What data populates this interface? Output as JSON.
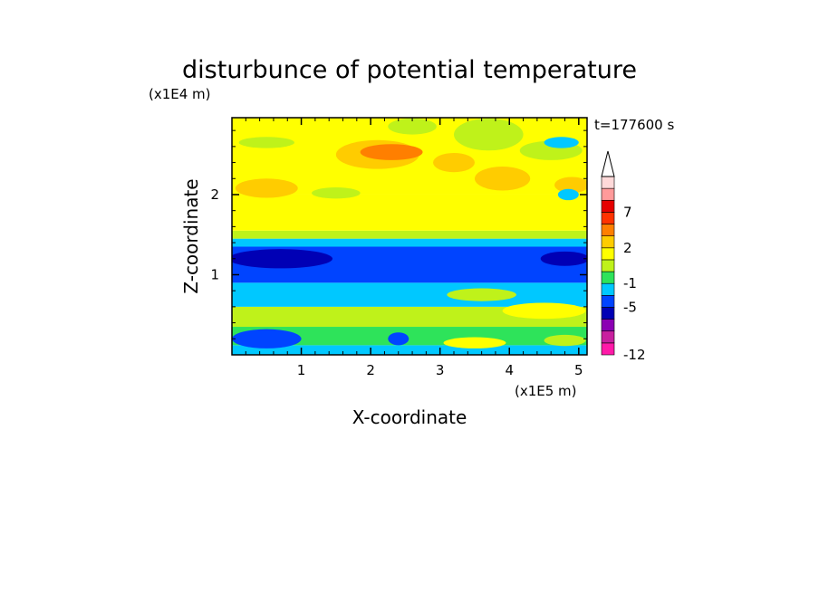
{
  "chart_data": {
    "type": "heatmap",
    "title": "disturbunce of potential temperature",
    "xlabel": "X-coordinate",
    "ylabel": "Z-coordinate",
    "x_unit": "(x1E5 m)",
    "y_unit": "(x1E4 m)",
    "time_label": "t=177600 s",
    "xlim": [
      0,
      5.12
    ],
    "ylim": [
      0,
      2.96
    ],
    "x_ticks": [
      1,
      2,
      3,
      4,
      5
    ],
    "y_ticks": [
      1,
      2
    ],
    "colorbar": {
      "levels": [
        -12,
        -11,
        -9,
        -7,
        -5,
        -3,
        -1,
        0,
        1,
        2,
        3,
        5,
        7,
        9,
        11
      ],
      "colors": [
        "#ff1aa8",
        "#c8209f",
        "#8b00b3",
        "#0000b5",
        "#0044ff",
        "#00c8ff",
        "#2ee35a",
        "#bff21a",
        "#ffff00",
        "#ffcc00",
        "#ff7f00",
        "#ff3300",
        "#e60000",
        "#ff9a9a",
        "#ffd9d9"
      ],
      "tick_labels": [
        "7",
        "2",
        "-1",
        "-5",
        "-12"
      ],
      "tick_values": [
        7,
        2,
        -1,
        -5,
        -12
      ],
      "extend": "max"
    },
    "bands": [
      {
        "z_min": 0.0,
        "z_max": 0.12,
        "value": -2
      },
      {
        "z_min": 0.12,
        "z_max": 0.35,
        "value": -0.5
      },
      {
        "z_min": 0.35,
        "z_max": 0.6,
        "value": 0.5
      },
      {
        "z_min": 0.6,
        "z_max": 0.9,
        "value": -2
      },
      {
        "z_min": 0.9,
        "z_max": 1.35,
        "value": -4
      },
      {
        "z_min": 1.35,
        "z_max": 1.45,
        "value": -2
      },
      {
        "z_min": 1.45,
        "z_max": 1.55,
        "value": 0.5
      },
      {
        "z_min": 1.55,
        "z_max": 2.0,
        "value": 1.5
      },
      {
        "z_min": 2.0,
        "z_max": 2.96,
        "value": 1.5
      }
    ],
    "features": [
      {
        "x": 2.1,
        "z": 2.5,
        "rx": 0.6,
        "rz": 0.18,
        "value": 2.5
      },
      {
        "x": 2.3,
        "z": 2.53,
        "rx": 0.45,
        "rz": 0.1,
        "value": 3.5
      },
      {
        "x": 0.5,
        "z": 2.08,
        "rx": 0.45,
        "rz": 0.12,
        "value": 2.5
      },
      {
        "x": 3.9,
        "z": 2.2,
        "rx": 0.4,
        "rz": 0.15,
        "value": 2.5
      },
      {
        "x": 4.9,
        "z": 2.12,
        "rx": 0.25,
        "rz": 0.1,
        "value": 2.5
      },
      {
        "x": 3.2,
        "z": 2.4,
        "rx": 0.3,
        "rz": 0.12,
        "value": 2.5
      },
      {
        "x": 0.5,
        "z": 2.65,
        "rx": 0.4,
        "rz": 0.07,
        "value": 0.5
      },
      {
        "x": 1.5,
        "z": 2.02,
        "rx": 0.35,
        "rz": 0.07,
        "value": 0.5
      },
      {
        "x": 3.7,
        "z": 2.75,
        "rx": 0.5,
        "rz": 0.2,
        "value": 0.5
      },
      {
        "x": 4.6,
        "z": 2.55,
        "rx": 0.45,
        "rz": 0.12,
        "value": 0.5
      },
      {
        "x": 2.6,
        "z": 2.85,
        "rx": 0.35,
        "rz": 0.1,
        "value": 0.5
      },
      {
        "x": 4.75,
        "z": 2.65,
        "rx": 0.25,
        "rz": 0.07,
        "value": -2
      },
      {
        "x": 4.85,
        "z": 2.0,
        "rx": 0.15,
        "rz": 0.07,
        "value": -2
      },
      {
        "x": 0.7,
        "z": 1.2,
        "rx": 0.75,
        "rz": 0.12,
        "value": -6
      },
      {
        "x": 4.8,
        "z": 1.2,
        "rx": 0.35,
        "rz": 0.09,
        "value": -6
      },
      {
        "x": 0.5,
        "z": 0.2,
        "rx": 0.5,
        "rz": 0.12,
        "value": -4
      },
      {
        "x": 2.4,
        "z": 0.2,
        "rx": 0.15,
        "rz": 0.08,
        "value": -4
      },
      {
        "x": 3.5,
        "z": 0.15,
        "rx": 0.45,
        "rz": 0.07,
        "value": 1.5
      },
      {
        "x": 4.8,
        "z": 0.18,
        "rx": 0.3,
        "rz": 0.07,
        "value": 0.5
      },
      {
        "x": 4.5,
        "z": 0.55,
        "rx": 0.6,
        "rz": 0.1,
        "value": 1.5
      },
      {
        "x": 3.6,
        "z": 0.75,
        "rx": 0.5,
        "rz": 0.08,
        "value": 0.5
      }
    ]
  }
}
